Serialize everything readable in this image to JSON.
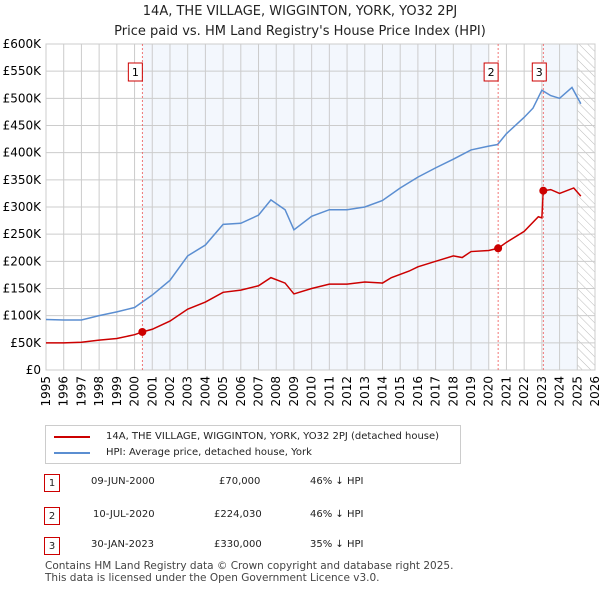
{
  "title": "14A, THE VILLAGE, WIGGINTON, YORK, YO32 2PJ",
  "subtitle": "Price paid vs. HM Land Registry's House Price Index (HPI)",
  "chart_data": {
    "type": "line",
    "xlim": [
      1995,
      2026
    ],
    "ylim": [
      0,
      600000
    ],
    "yticks": [
      0,
      50000,
      100000,
      150000,
      200000,
      250000,
      300000,
      350000,
      400000,
      450000,
      500000,
      550000,
      600000
    ],
    "ytick_labels": [
      "£0",
      "£50K",
      "£100K",
      "£150K",
      "£200K",
      "£250K",
      "£300K",
      "£350K",
      "£400K",
      "£450K",
      "£500K",
      "£550K",
      "£600K"
    ],
    "xticks": [
      1995,
      1996,
      1997,
      1998,
      1999,
      2000,
      2001,
      2002,
      2003,
      2004,
      2005,
      2006,
      2007,
      2008,
      2009,
      2010,
      2011,
      2012,
      2013,
      2014,
      2015,
      2016,
      2017,
      2018,
      2019,
      2020,
      2021,
      2022,
      2023,
      2024,
      2025,
      2026
    ],
    "grid": true,
    "series": [
      {
        "name": "14A, THE VILLAGE, WIGGINTON, YORK, YO32 2PJ (detached house)",
        "color": "#cc0000",
        "x": [
          1995,
          1996,
          1997,
          1998,
          1999,
          2000,
          2000.44,
          2001,
          2002,
          2003,
          2004,
          2005,
          2006,
          2007,
          2007.7,
          2008.5,
          2009,
          2010,
          2011,
          2012,
          2013,
          2014,
          2014.5,
          2015.5,
          2016,
          2017,
          2018,
          2018.5,
          2019,
          2020,
          2020.53,
          2021,
          2022,
          2022.8,
          2023.0,
          2023.08,
          2023.5,
          2024,
          2024.8,
          2025.2
        ],
        "y": [
          50000,
          50000,
          51000,
          55000,
          58000,
          65000,
          70000,
          75000,
          90000,
          112000,
          125000,
          143000,
          147000,
          155000,
          170000,
          160000,
          140000,
          150000,
          158000,
          158000,
          162000,
          160000,
          170000,
          182000,
          190000,
          200000,
          210000,
          207000,
          218000,
          220000,
          224030,
          235000,
          255000,
          282000,
          280000,
          330000,
          332000,
          325000,
          335000,
          320000
        ]
      },
      {
        "name": "HPI: Average price, detached house, York",
        "color": "#5b8ed1",
        "x": [
          1995,
          1996,
          1997,
          1998,
          1999,
          2000,
          2001,
          2002,
          2003,
          2004,
          2005,
          2006,
          2007,
          2007.7,
          2008.5,
          2009,
          2010,
          2011,
          2012,
          2013,
          2014,
          2015,
          2016,
          2017,
          2018,
          2019,
          2020,
          2020.5,
          2021,
          2022,
          2022.5,
          2023,
          2023.5,
          2024,
          2024.7,
          2025.2
        ],
        "y": [
          93000,
          92000,
          92000,
          100000,
          107000,
          115000,
          138000,
          165000,
          210000,
          230000,
          268000,
          270000,
          285000,
          313000,
          295000,
          258000,
          283000,
          295000,
          295000,
          300000,
          312000,
          335000,
          355000,
          372000,
          388000,
          405000,
          412000,
          415000,
          435000,
          465000,
          482000,
          515000,
          505000,
          500000,
          520000,
          490000
        ]
      }
    ],
    "sales": [
      {
        "label": "1",
        "x": 2000.44,
        "y": 70000
      },
      {
        "label": "2",
        "x": 2020.53,
        "y": 224030
      },
      {
        "label": "3",
        "x": 2023.08,
        "y": 330000
      }
    ]
  },
  "legend": {
    "item1": "14A, THE VILLAGE, WIGGINTON, YORK, YO32 2PJ (detached house)",
    "item2": "HPI: Average price, detached house, York"
  },
  "table": [
    {
      "num": "1",
      "date": "09-JUN-2000",
      "price": "£70,000",
      "hpi": "46% ↓ HPI"
    },
    {
      "num": "2",
      "date": "10-JUL-2020",
      "price": "£224,030",
      "hpi": "46% ↓ HPI"
    },
    {
      "num": "3",
      "date": "30-JAN-2023",
      "price": "£330,000",
      "hpi": "35% ↓ HPI"
    }
  ],
  "footer": {
    "line1": "Contains HM Land Registry data © Crown copyright and database right 2025.",
    "line2": "This data is licensed under the Open Government Licence v3.0."
  }
}
